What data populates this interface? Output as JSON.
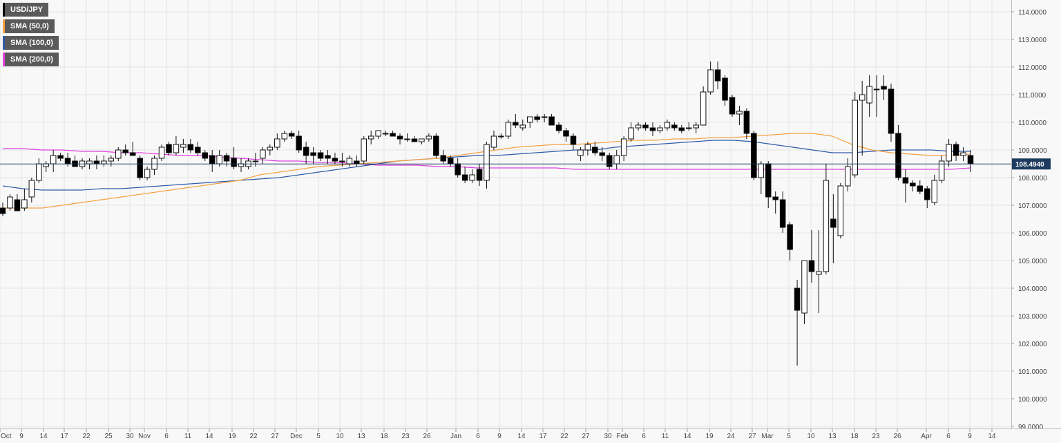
{
  "chart_data": {
    "type": "candlestick",
    "symbol": "USD/JPY",
    "y_axis": {
      "ylim": [
        99.0,
        114.3
      ],
      "ticks": [
        "99.0000",
        "100.0000",
        "101.0000",
        "102.0000",
        "103.0000",
        "104.0000",
        "105.0000",
        "106.0000",
        "107.0000",
        "108.0000",
        "109.0000",
        "110.0000",
        "111.0000",
        "112.0000",
        "113.0000",
        "114.0000"
      ],
      "position": "right"
    },
    "x_axis": {
      "ticks": [
        "Oct",
        "9",
        "14",
        "17",
        "22",
        "25",
        "30",
        "Nov",
        "6",
        "11",
        "14",
        "19",
        "22",
        "27",
        "Dec",
        "5",
        "10",
        "13",
        "18",
        "23",
        "26",
        "Jan",
        "6",
        "9",
        "14",
        "17",
        "22",
        "27",
        "30",
        "Feb",
        "6",
        "11",
        "14",
        "19",
        "24",
        "27",
        "Mar",
        "5",
        "10",
        "13",
        "18",
        "23",
        "26",
        "Apr",
        "6",
        "9",
        "14"
      ]
    },
    "grid": true,
    "last_price": {
      "value": 108.494,
      "label": "108.4940",
      "color": "#1e3a5f"
    },
    "legend": [
      {
        "label": "USD/JPY",
        "color": "#000000"
      },
      {
        "label": "SMA (50,0)",
        "color": "#f5a142"
      },
      {
        "label": "SMA (100,0)",
        "color": "#2f5aa8"
      },
      {
        "label": "SMA (200,0)",
        "color": "#e040e0"
      }
    ],
    "candles": [
      {
        "o": 106.9,
        "h": 107.1,
        "l": 106.6,
        "c": 106.7
      },
      {
        "o": 106.9,
        "h": 107.4,
        "l": 106.8,
        "c": 107.3
      },
      {
        "o": 107.2,
        "h": 107.4,
        "l": 106.9,
        "c": 106.8
      },
      {
        "o": 106.9,
        "h": 107.6,
        "l": 106.8,
        "c": 107.2
      },
      {
        "o": 107.3,
        "h": 108.0,
        "l": 107.1,
        "c": 107.9
      },
      {
        "o": 107.9,
        "h": 108.7,
        "l": 107.8,
        "c": 108.5
      },
      {
        "o": 108.4,
        "h": 108.6,
        "l": 108.2,
        "c": 108.5
      },
      {
        "o": 108.5,
        "h": 109.0,
        "l": 108.2,
        "c": 108.8
      },
      {
        "o": 108.8,
        "h": 108.9,
        "l": 108.6,
        "c": 108.7
      },
      {
        "o": 108.7,
        "h": 108.9,
        "l": 108.4,
        "c": 108.5
      },
      {
        "o": 108.6,
        "h": 108.8,
        "l": 108.4,
        "c": 108.4
      },
      {
        "o": 108.4,
        "h": 108.7,
        "l": 108.3,
        "c": 108.6
      },
      {
        "o": 108.5,
        "h": 108.7,
        "l": 108.3,
        "c": 108.6
      },
      {
        "o": 108.6,
        "h": 108.8,
        "l": 108.3,
        "c": 108.5
      },
      {
        "o": 108.5,
        "h": 108.8,
        "l": 108.4,
        "c": 108.6
      },
      {
        "o": 108.6,
        "h": 108.8,
        "l": 108.4,
        "c": 108.7
      },
      {
        "o": 108.7,
        "h": 109.1,
        "l": 108.6,
        "c": 109.0
      },
      {
        "o": 109.0,
        "h": 109.2,
        "l": 108.8,
        "c": 108.9
      },
      {
        "o": 108.9,
        "h": 109.3,
        "l": 108.8,
        "c": 108.8
      },
      {
        "o": 108.7,
        "h": 108.8,
        "l": 107.9,
        "c": 108.0
      },
      {
        "o": 108.0,
        "h": 108.4,
        "l": 107.9,
        "c": 108.3
      },
      {
        "o": 108.3,
        "h": 108.8,
        "l": 108.1,
        "c": 108.7
      },
      {
        "o": 108.7,
        "h": 109.2,
        "l": 108.6,
        "c": 109.1
      },
      {
        "o": 109.2,
        "h": 109.3,
        "l": 108.8,
        "c": 108.9
      },
      {
        "o": 108.9,
        "h": 109.5,
        "l": 108.8,
        "c": 109.2
      },
      {
        "o": 109.1,
        "h": 109.4,
        "l": 108.9,
        "c": 109.2
      },
      {
        "o": 109.2,
        "h": 109.4,
        "l": 108.9,
        "c": 109.0
      },
      {
        "o": 109.1,
        "h": 109.3,
        "l": 108.8,
        "c": 108.9
      },
      {
        "o": 108.9,
        "h": 109.0,
        "l": 108.6,
        "c": 108.7
      },
      {
        "o": 108.8,
        "h": 109.0,
        "l": 108.2,
        "c": 108.5
      },
      {
        "o": 108.5,
        "h": 109.0,
        "l": 108.4,
        "c": 108.8
      },
      {
        "o": 108.8,
        "h": 108.9,
        "l": 108.4,
        "c": 108.6
      },
      {
        "o": 108.7,
        "h": 109.1,
        "l": 108.3,
        "c": 108.4
      },
      {
        "o": 108.4,
        "h": 108.7,
        "l": 108.2,
        "c": 108.5
      },
      {
        "o": 108.4,
        "h": 108.7,
        "l": 108.3,
        "c": 108.6
      },
      {
        "o": 108.6,
        "h": 108.9,
        "l": 108.4,
        "c": 108.6
      },
      {
        "o": 108.7,
        "h": 109.1,
        "l": 108.5,
        "c": 109.0
      },
      {
        "o": 109.0,
        "h": 109.2,
        "l": 108.8,
        "c": 109.1
      },
      {
        "o": 109.1,
        "h": 109.6,
        "l": 109.0,
        "c": 109.4
      },
      {
        "o": 109.4,
        "h": 109.7,
        "l": 109.3,
        "c": 109.6
      },
      {
        "o": 109.6,
        "h": 109.7,
        "l": 109.4,
        "c": 109.5
      },
      {
        "o": 109.5,
        "h": 109.7,
        "l": 108.9,
        "c": 109.0
      },
      {
        "o": 109.1,
        "h": 109.3,
        "l": 108.5,
        "c": 108.8
      },
      {
        "o": 108.9,
        "h": 109.1,
        "l": 108.5,
        "c": 108.8
      },
      {
        "o": 108.9,
        "h": 109.0,
        "l": 108.6,
        "c": 108.7
      },
      {
        "o": 108.8,
        "h": 109.0,
        "l": 108.5,
        "c": 108.7
      },
      {
        "o": 108.7,
        "h": 108.9,
        "l": 108.5,
        "c": 108.6
      },
      {
        "o": 108.6,
        "h": 108.9,
        "l": 108.4,
        "c": 108.6
      },
      {
        "o": 108.5,
        "h": 108.8,
        "l": 108.4,
        "c": 108.7
      },
      {
        "o": 108.6,
        "h": 108.8,
        "l": 108.4,
        "c": 108.5
      },
      {
        "o": 108.6,
        "h": 109.5,
        "l": 108.5,
        "c": 109.4
      },
      {
        "o": 109.4,
        "h": 109.7,
        "l": 109.2,
        "c": 109.5
      },
      {
        "o": 109.5,
        "h": 109.7,
        "l": 109.4,
        "c": 109.7
      },
      {
        "o": 109.6,
        "h": 109.7,
        "l": 109.5,
        "c": 109.6
      },
      {
        "o": 109.6,
        "h": 109.7,
        "l": 109.5,
        "c": 109.5
      },
      {
        "o": 109.5,
        "h": 109.6,
        "l": 109.2,
        "c": 109.4
      },
      {
        "o": 109.4,
        "h": 109.6,
        "l": 109.3,
        "c": 109.4
      },
      {
        "o": 109.4,
        "h": 109.5,
        "l": 109.3,
        "c": 109.3
      },
      {
        "o": 109.3,
        "h": 109.4,
        "l": 109.2,
        "c": 109.4
      },
      {
        "o": 109.4,
        "h": 109.6,
        "l": 109.3,
        "c": 109.5
      },
      {
        "o": 109.5,
        "h": 109.6,
        "l": 108.7,
        "c": 108.8
      },
      {
        "o": 108.8,
        "h": 109.0,
        "l": 108.5,
        "c": 108.6
      },
      {
        "o": 108.7,
        "h": 108.8,
        "l": 108.4,
        "c": 108.5
      },
      {
        "o": 108.5,
        "h": 108.7,
        "l": 108.0,
        "c": 108.1
      },
      {
        "o": 108.1,
        "h": 108.4,
        "l": 107.8,
        "c": 107.9
      },
      {
        "o": 107.9,
        "h": 108.3,
        "l": 107.8,
        "c": 108.1
      },
      {
        "o": 108.3,
        "h": 108.5,
        "l": 107.7,
        "c": 107.9
      },
      {
        "o": 107.9,
        "h": 109.3,
        "l": 107.6,
        "c": 109.2
      },
      {
        "o": 109.1,
        "h": 109.7,
        "l": 109.0,
        "c": 109.5
      },
      {
        "o": 109.5,
        "h": 109.6,
        "l": 109.4,
        "c": 109.5
      },
      {
        "o": 109.5,
        "h": 110.1,
        "l": 109.4,
        "c": 110.0
      },
      {
        "o": 110.0,
        "h": 110.3,
        "l": 109.8,
        "c": 109.9
      },
      {
        "o": 109.8,
        "h": 110.1,
        "l": 109.7,
        "c": 109.9
      },
      {
        "o": 110.0,
        "h": 110.2,
        "l": 109.8,
        "c": 110.2
      },
      {
        "o": 110.2,
        "h": 110.3,
        "l": 110.0,
        "c": 110.1
      },
      {
        "o": 110.2,
        "h": 110.3,
        "l": 110.0,
        "c": 110.2
      },
      {
        "o": 110.2,
        "h": 110.3,
        "l": 109.9,
        "c": 109.9
      },
      {
        "o": 109.9,
        "h": 110.0,
        "l": 109.6,
        "c": 109.7
      },
      {
        "o": 109.7,
        "h": 109.8,
        "l": 109.3,
        "c": 109.5
      },
      {
        "o": 109.5,
        "h": 109.6,
        "l": 109.0,
        "c": 109.2
      },
      {
        "o": 108.8,
        "h": 109.1,
        "l": 108.6,
        "c": 109.0
      },
      {
        "o": 109.0,
        "h": 109.3,
        "l": 108.8,
        "c": 109.2
      },
      {
        "o": 109.1,
        "h": 109.3,
        "l": 108.8,
        "c": 108.9
      },
      {
        "o": 108.9,
        "h": 109.1,
        "l": 108.6,
        "c": 108.8
      },
      {
        "o": 108.8,
        "h": 108.9,
        "l": 108.3,
        "c": 108.4
      },
      {
        "o": 108.5,
        "h": 109.0,
        "l": 108.3,
        "c": 108.8
      },
      {
        "o": 108.8,
        "h": 109.5,
        "l": 108.6,
        "c": 109.4
      },
      {
        "o": 109.4,
        "h": 110.0,
        "l": 109.3,
        "c": 109.8
      },
      {
        "o": 109.8,
        "h": 110.0,
        "l": 109.7,
        "c": 109.9
      },
      {
        "o": 109.9,
        "h": 110.0,
        "l": 109.7,
        "c": 109.8
      },
      {
        "o": 109.8,
        "h": 110.0,
        "l": 109.5,
        "c": 109.7
      },
      {
        "o": 109.7,
        "h": 109.9,
        "l": 109.6,
        "c": 109.8
      },
      {
        "o": 109.8,
        "h": 110.1,
        "l": 109.7,
        "c": 110.0
      },
      {
        "o": 109.9,
        "h": 110.0,
        "l": 109.7,
        "c": 109.8
      },
      {
        "o": 109.8,
        "h": 109.9,
        "l": 109.6,
        "c": 109.7
      },
      {
        "o": 109.8,
        "h": 110.0,
        "l": 109.7,
        "c": 109.8
      },
      {
        "o": 109.8,
        "h": 110.0,
        "l": 109.6,
        "c": 109.9
      },
      {
        "o": 109.9,
        "h": 111.3,
        "l": 109.9,
        "c": 111.1
      },
      {
        "o": 111.1,
        "h": 112.2,
        "l": 111.0,
        "c": 111.9
      },
      {
        "o": 111.9,
        "h": 112.2,
        "l": 111.2,
        "c": 111.5
      },
      {
        "o": 111.6,
        "h": 111.7,
        "l": 110.6,
        "c": 110.8
      },
      {
        "o": 110.9,
        "h": 111.0,
        "l": 110.2,
        "c": 110.3
      },
      {
        "o": 110.3,
        "h": 110.6,
        "l": 109.9,
        "c": 110.4
      },
      {
        "o": 110.4,
        "h": 110.5,
        "l": 109.4,
        "c": 109.6
      },
      {
        "o": 109.6,
        "h": 109.7,
        "l": 107.9,
        "c": 108.0
      },
      {
        "o": 108.0,
        "h": 108.6,
        "l": 107.4,
        "c": 108.5
      },
      {
        "o": 108.5,
        "h": 108.6,
        "l": 106.9,
        "c": 107.3
      },
      {
        "o": 107.3,
        "h": 107.5,
        "l": 106.7,
        "c": 107.2
      },
      {
        "o": 107.2,
        "h": 107.5,
        "l": 106.0,
        "c": 106.2
      },
      {
        "o": 106.3,
        "h": 106.4,
        "l": 105.0,
        "c": 105.4
      },
      {
        "o": 104.0,
        "h": 104.3,
        "l": 101.2,
        "c": 103.2
      },
      {
        "o": 103.1,
        "h": 105.0,
        "l": 102.7,
        "c": 105.0
      },
      {
        "o": 105.0,
        "h": 106.1,
        "l": 104.2,
        "c": 104.6
      },
      {
        "o": 104.5,
        "h": 106.1,
        "l": 103.1,
        "c": 104.6
      },
      {
        "o": 104.6,
        "h": 108.5,
        "l": 104.5,
        "c": 107.9
      },
      {
        "o": 106.5,
        "h": 107.4,
        "l": 104.9,
        "c": 106.2
      },
      {
        "o": 105.9,
        "h": 107.8,
        "l": 105.8,
        "c": 107.7
      },
      {
        "o": 107.7,
        "h": 108.7,
        "l": 107.5,
        "c": 108.4
      },
      {
        "o": 108.1,
        "h": 111.1,
        "l": 108.0,
        "c": 110.8
      },
      {
        "o": 110.8,
        "h": 111.5,
        "l": 108.8,
        "c": 111.0
      },
      {
        "o": 110.7,
        "h": 111.7,
        "l": 110.2,
        "c": 111.3
      },
      {
        "o": 111.2,
        "h": 111.7,
        "l": 110.2,
        "c": 111.2
      },
      {
        "o": 111.3,
        "h": 111.7,
        "l": 110.8,
        "c": 111.2
      },
      {
        "o": 111.2,
        "h": 111.4,
        "l": 109.3,
        "c": 109.6
      },
      {
        "o": 109.6,
        "h": 109.9,
        "l": 107.9,
        "c": 108.0
      },
      {
        "o": 108.0,
        "h": 108.3,
        "l": 107.1,
        "c": 107.8
      },
      {
        "o": 107.8,
        "h": 107.9,
        "l": 107.5,
        "c": 107.7
      },
      {
        "o": 107.7,
        "h": 107.9,
        "l": 107.4,
        "c": 107.5
      },
      {
        "o": 107.6,
        "h": 107.7,
        "l": 106.9,
        "c": 107.2
      },
      {
        "o": 107.1,
        "h": 108.1,
        "l": 107.0,
        "c": 107.9
      },
      {
        "o": 107.9,
        "h": 108.8,
        "l": 107.8,
        "c": 108.6
      },
      {
        "o": 108.6,
        "h": 109.4,
        "l": 108.4,
        "c": 109.2
      },
      {
        "o": 109.2,
        "h": 109.3,
        "l": 108.6,
        "c": 108.8
      },
      {
        "o": 108.8,
        "h": 109.1,
        "l": 108.6,
        "c": 108.9
      },
      {
        "o": 108.8,
        "h": 109.0,
        "l": 108.2,
        "c": 108.5
      }
    ],
    "sma50": [
      106.9,
      106.9,
      106.9,
      107.0,
      107.1,
      107.2,
      107.3,
      107.4,
      107.5,
      107.6,
      107.7,
      107.8,
      107.9,
      108.1,
      108.2,
      108.3,
      108.4,
      108.45,
      108.5,
      108.55,
      108.6,
      108.65,
      108.7,
      108.8,
      108.9,
      109.0,
      109.1,
      109.15,
      109.2,
      109.2,
      109.25,
      109.3,
      109.35,
      109.35,
      109.4,
      109.4,
      109.45,
      109.45,
      109.5,
      109.55,
      109.6,
      109.6,
      109.5,
      109.2,
      109.0,
      108.9,
      108.85,
      108.8,
      108.8,
      108.85
    ],
    "sma100": [
      107.7,
      107.6,
      107.55,
      107.55,
      107.55,
      107.6,
      107.6,
      107.65,
      107.7,
      107.75,
      107.8,
      107.85,
      107.9,
      107.95,
      108.0,
      108.1,
      108.2,
      108.3,
      108.4,
      108.5,
      108.6,
      108.65,
      108.7,
      108.75,
      108.8,
      108.8,
      108.85,
      108.9,
      108.95,
      109.0,
      109.0,
      109.1,
      109.15,
      109.2,
      109.25,
      109.3,
      109.35,
      109.35,
      109.3,
      109.2,
      109.1,
      109.0,
      108.9,
      108.9,
      108.95,
      109.0,
      109.0,
      109.0,
      108.95,
      108.95
    ],
    "sma200": [
      109.05,
      109.05,
      109.0,
      109.0,
      108.95,
      108.95,
      108.9,
      108.9,
      108.85,
      108.8,
      108.8,
      108.75,
      108.7,
      108.65,
      108.6,
      108.6,
      108.55,
      108.55,
      108.5,
      108.45,
      108.45,
      108.45,
      108.4,
      108.4,
      108.35,
      108.35,
      108.35,
      108.35,
      108.35,
      108.3,
      108.3,
      108.3,
      108.3,
      108.3,
      108.3,
      108.3,
      108.3,
      108.3,
      108.3,
      108.3,
      108.3,
      108.3,
      108.3,
      108.3,
      108.3,
      108.3,
      108.3,
      108.3,
      108.3,
      108.35
    ]
  }
}
